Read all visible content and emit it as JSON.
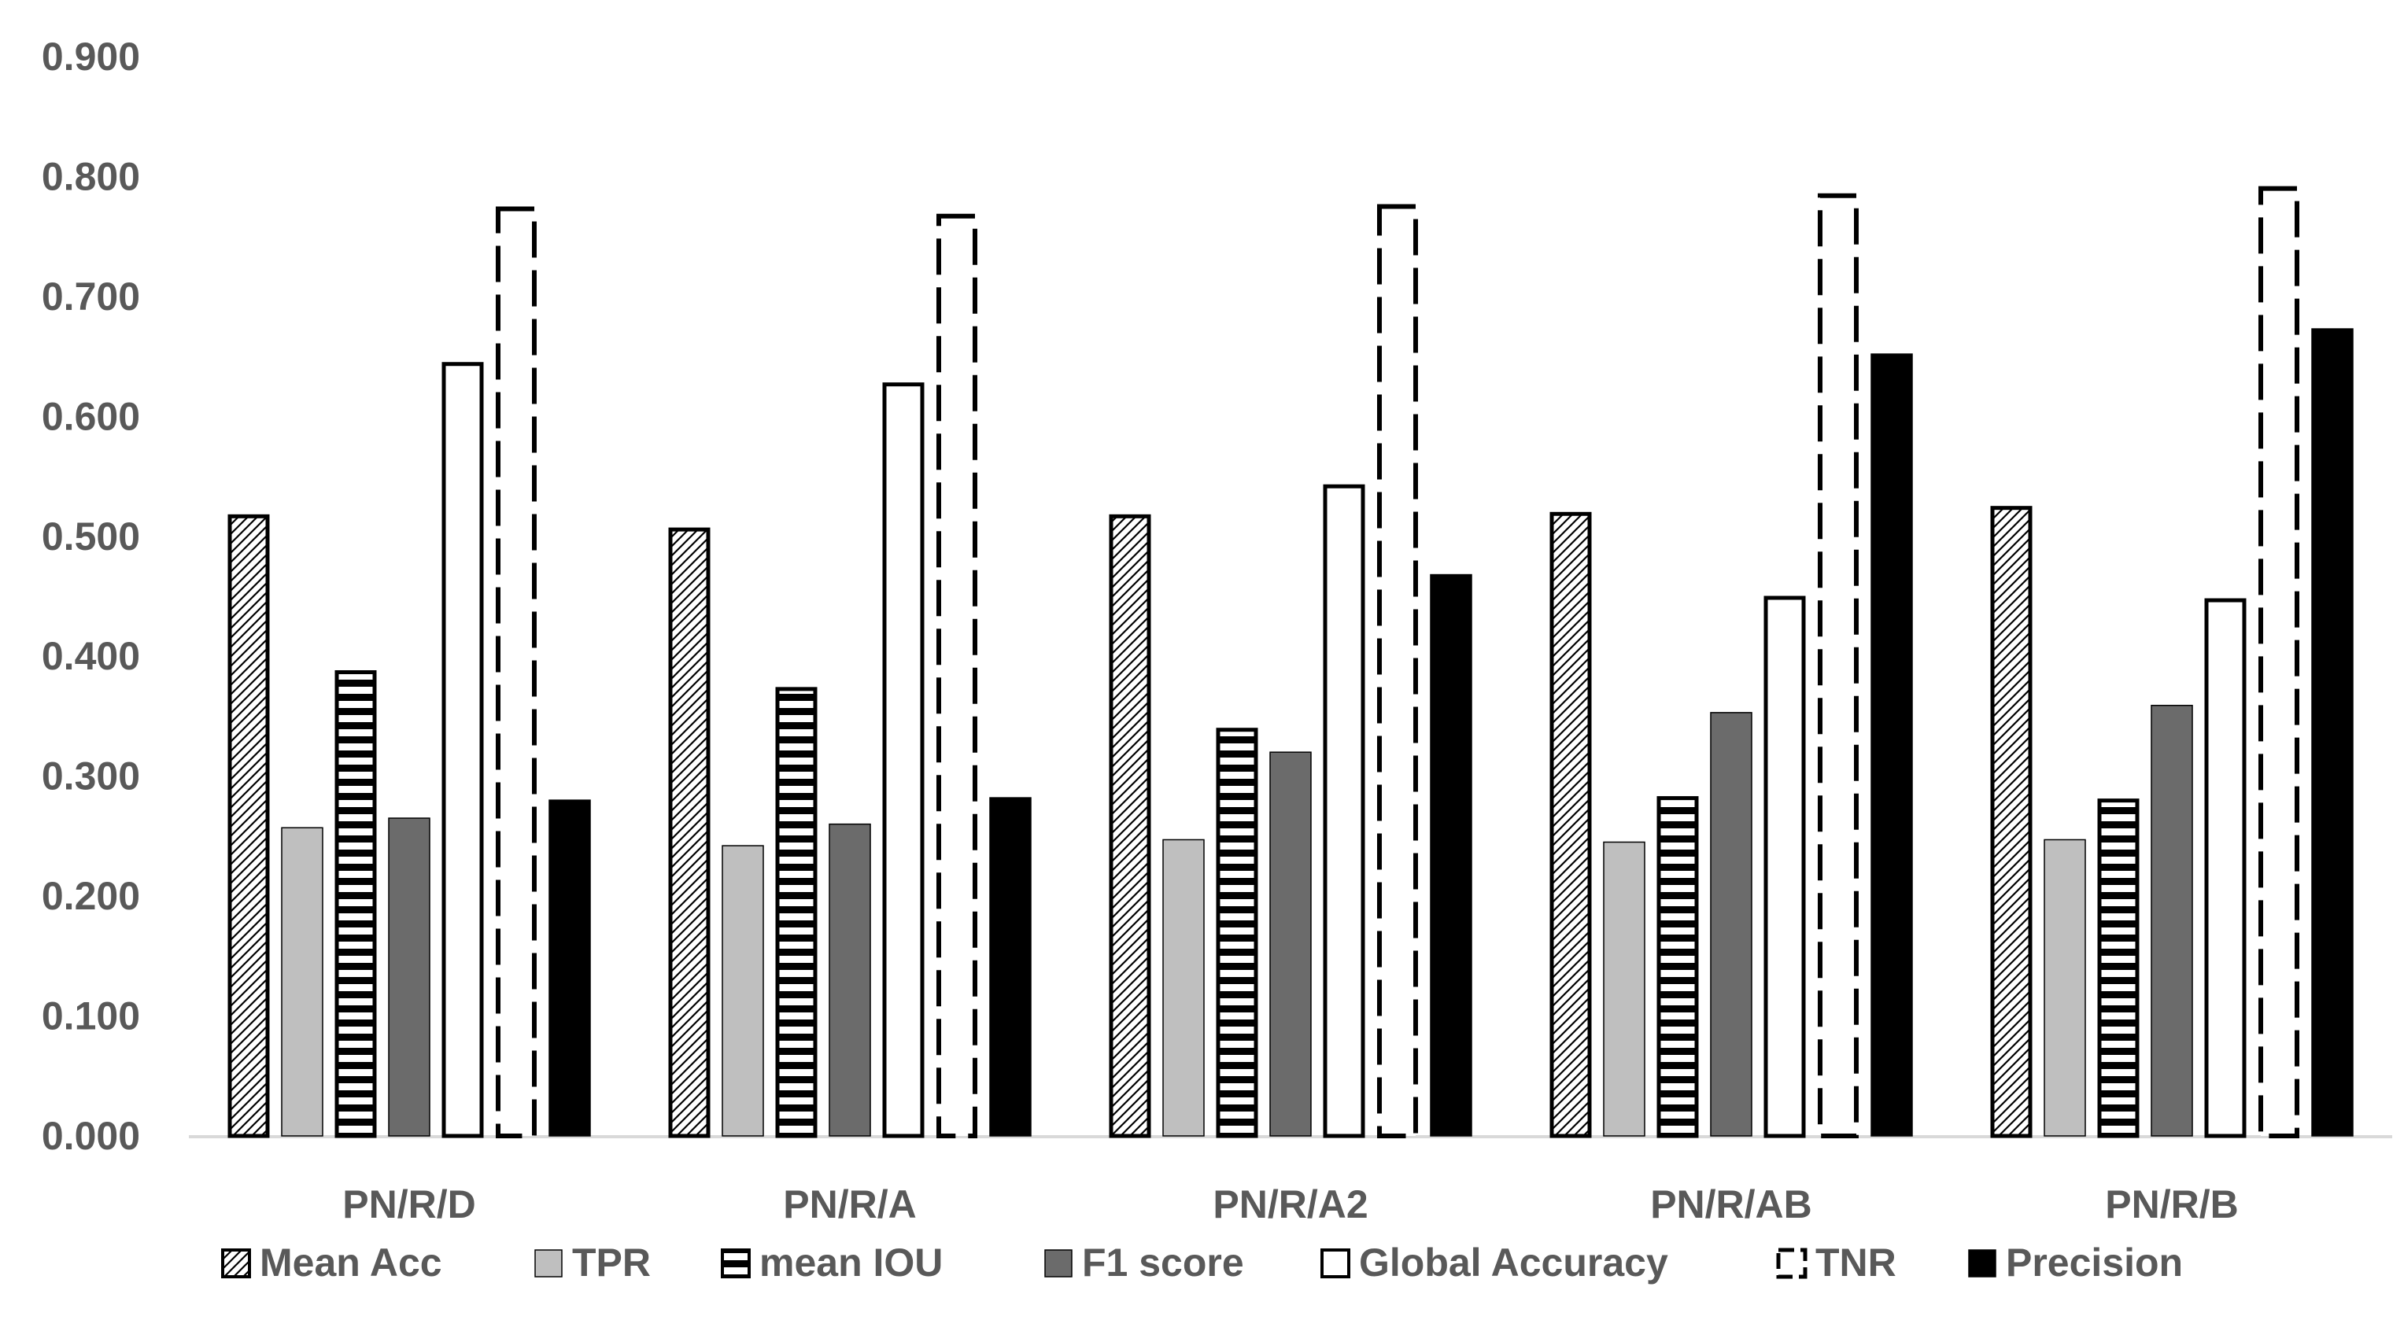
{
  "chart_data": {
    "type": "bar",
    "title": "",
    "xlabel": "",
    "ylabel": "",
    "ylim": [
      0,
      0.9
    ],
    "yticks": [
      "0.000",
      "0.100",
      "0.200",
      "0.300",
      "0.400",
      "0.500",
      "0.600",
      "0.700",
      "0.800",
      "0.900"
    ],
    "categories": [
      "PN/R/D",
      "PN/R/A",
      "PN/R/A2",
      "PN/R/AB",
      "PN/R/B"
    ],
    "legend_position": "bottom",
    "series": [
      {
        "name": "Mean Acc",
        "style": "diagonal-hatch",
        "values": [
          0.518,
          0.507,
          0.518,
          0.52,
          0.525
        ]
      },
      {
        "name": "TPR",
        "style": "light-gray",
        "color": "#bfbfbf",
        "values": [
          0.257,
          0.242,
          0.247,
          0.245,
          0.247
        ]
      },
      {
        "name": "mean IOU",
        "style": "horizontal-stripes",
        "values": [
          0.388,
          0.374,
          0.34,
          0.283,
          0.281
        ]
      },
      {
        "name": "F1 score",
        "style": "dark-gray",
        "color": "#6b6b6b",
        "values": [
          0.265,
          0.26,
          0.32,
          0.353,
          0.359
        ]
      },
      {
        "name": "Global  Accuracy",
        "style": "white",
        "values": [
          0.645,
          0.628,
          0.543,
          0.45,
          0.448
        ]
      },
      {
        "name": "TNR",
        "style": "dashed-outline",
        "values": [
          0.775,
          0.769,
          0.777,
          0.786,
          0.792
        ]
      },
      {
        "name": "Precision",
        "style": "black",
        "color": "#000000",
        "values": [
          0.28,
          0.282,
          0.468,
          0.652,
          0.673
        ]
      }
    ]
  }
}
